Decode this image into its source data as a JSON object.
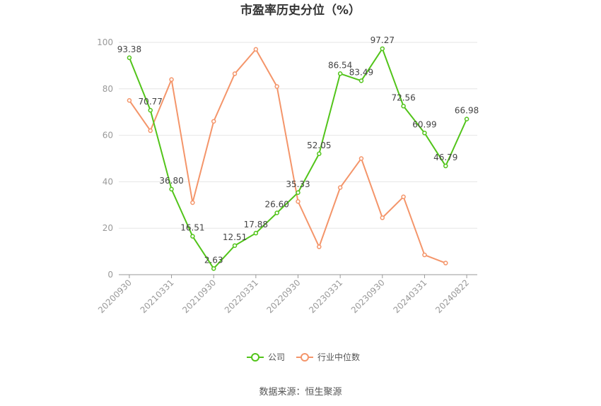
{
  "chart_data": {
    "type": "line",
    "title": "市盈率历史分位（%）",
    "source": "数据来源：恒生聚源",
    "x_tick_labels": [
      "20200930",
      "20210331",
      "20210930",
      "20220331",
      "20220930",
      "20230331",
      "20230930",
      "20240331",
      "20240822"
    ],
    "x": [
      "20200930",
      "20201231",
      "20210331",
      "20210630",
      "20210930",
      "20211231",
      "20220331",
      "20220630",
      "20220930",
      "20221231",
      "20230331",
      "20230630",
      "20230930",
      "20231231",
      "20240331",
      "20240630",
      "20240822"
    ],
    "ylim": [
      0,
      100
    ],
    "yticks": [
      0,
      20,
      40,
      60,
      80,
      100
    ],
    "grid": true,
    "legend_position": "bottom",
    "series": [
      {
        "name": "公司",
        "color": "#52c41a",
        "values": [
          93.38,
          70.77,
          36.8,
          16.51,
          2.63,
          12.51,
          17.88,
          26.6,
          35.33,
          52.05,
          86.54,
          83.49,
          97.27,
          72.56,
          60.99,
          46.79,
          66.98
        ],
        "labels": [
          "93.38",
          "70.77",
          "36.80",
          "16.51",
          "2.63",
          "12.51",
          "17.88",
          "26.60",
          "35.33",
          "52.05",
          "86.54",
          "83.49",
          "97.27",
          "72.56",
          "60.99",
          "46.79",
          "66.98"
        ]
      },
      {
        "name": "行业中位数",
        "color": "#f4956a",
        "values": [
          75.0,
          62.0,
          84.0,
          31.0,
          66.0,
          86.5,
          97.0,
          81.0,
          31.5,
          12.0,
          37.5,
          50.0,
          24.5,
          33.5,
          8.5,
          5.0,
          null
        ]
      }
    ]
  }
}
